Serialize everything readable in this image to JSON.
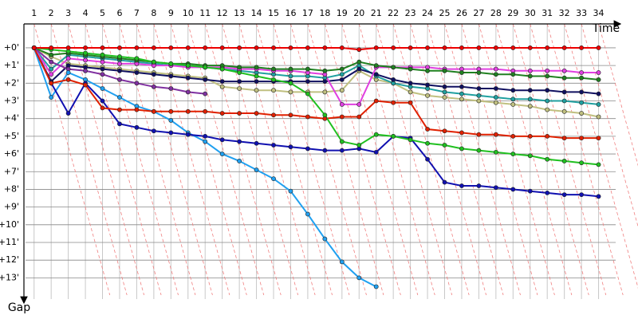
{
  "chart_data": {
    "type": "line",
    "x_label": "Time",
    "y_label": "Gap",
    "grid": true,
    "y_inverted": true,
    "x": [
      1,
      2,
      3,
      4,
      5,
      6,
      7,
      8,
      9,
      10,
      11,
      12,
      13,
      14,
      15,
      16,
      17,
      18,
      19,
      20,
      21,
      22,
      23,
      24,
      25,
      26,
      27,
      28,
      29,
      30,
      31,
      32,
      33,
      34
    ],
    "xlim": [
      0.5,
      35
    ],
    "xticks": [
      1,
      2,
      3,
      4,
      5,
      6,
      7,
      8,
      9,
      10,
      11,
      12,
      13,
      14,
      15,
      16,
      17,
      18,
      19,
      20,
      21,
      22,
      23,
      24,
      25,
      26,
      27,
      28,
      29,
      30,
      31,
      32,
      33,
      34
    ],
    "ylim": [
      -1.35,
      14.2
    ],
    "yticks": [
      {
        "value": 0,
        "label": "+0'"
      },
      {
        "value": 1,
        "label": "+1'"
      },
      {
        "value": 2,
        "label": "+2'"
      },
      {
        "value": 3,
        "label": "+3'"
      },
      {
        "value": 4,
        "label": "+4'"
      },
      {
        "value": 5,
        "label": "+5'"
      },
      {
        "value": 6,
        "label": "+6'"
      },
      {
        "value": 7,
        "label": "+7'"
      },
      {
        "value": 8,
        "label": "+8'"
      },
      {
        "value": 9,
        "label": "+9'"
      },
      {
        "value": 10,
        "label": "+10'"
      },
      {
        "value": 11,
        "label": "+11'"
      },
      {
        "value": 12,
        "label": "+12'"
      },
      {
        "value": 13,
        "label": "+13'"
      }
    ],
    "series": [
      {
        "color": "#c0c080",
        "values": [
          0,
          0.5,
          0.9,
          1.0,
          1.1,
          1.2,
          1.3,
          1.4,
          1.5,
          1.6,
          1.7,
          2.2,
          2.3,
          2.4,
          2.4,
          2.5,
          2.5,
          2.5,
          2.4,
          1.3,
          1.8,
          2.0,
          2.5,
          2.7,
          2.8,
          2.9,
          3.0,
          3.1,
          3.2,
          3.3,
          3.5,
          3.6,
          3.7,
          3.9
        ]
      },
      {
        "color": "#20a0a0",
        "values": [
          0,
          1.2,
          0.4,
          0.5,
          0.6,
          0.7,
          0.8,
          0.9,
          1.0,
          1.0,
          1.1,
          1.2,
          1.3,
          1.4,
          1.5,
          1.6,
          1.6,
          1.7,
          1.5,
          1.0,
          1.6,
          2.0,
          2.2,
          2.3,
          2.5,
          2.6,
          2.7,
          2.8,
          2.9,
          2.9,
          3.0,
          3.0,
          3.1,
          3.2
        ]
      },
      {
        "color": "#101060",
        "values": [
          0,
          1.9,
          1.0,
          1.1,
          1.2,
          1.3,
          1.4,
          1.5,
          1.6,
          1.7,
          1.8,
          1.9,
          1.9,
          1.9,
          1.9,
          1.9,
          1.9,
          1.9,
          1.8,
          1.2,
          1.5,
          1.8,
          2.0,
          2.1,
          2.2,
          2.2,
          2.3,
          2.3,
          2.4,
          2.4,
          2.4,
          2.5,
          2.5,
          2.6
        ]
      },
      {
        "color": "#e040e0",
        "values": [
          0,
          1.5,
          0.6,
          0.7,
          0.8,
          0.9,
          0.9,
          1.0,
          1.0,
          1.1,
          1.1,
          1.1,
          1.2,
          1.2,
          1.3,
          1.3,
          1.4,
          1.5,
          3.2,
          3.2,
          1.1,
          1.1,
          1.1,
          1.1,
          1.2,
          1.2,
          1.2,
          1.2,
          1.3,
          1.3,
          1.3,
          1.3,
          1.4,
          1.4
        ]
      },
      {
        "color": "#208020",
        "values": [
          0,
          0.4,
          0.3,
          0.4,
          0.5,
          0.6,
          0.7,
          0.8,
          0.9,
          0.9,
          1.0,
          1.0,
          1.1,
          1.1,
          1.2,
          1.2,
          1.2,
          1.3,
          1.2,
          0.8,
          1.0,
          1.1,
          1.2,
          1.3,
          1.3,
          1.4,
          1.4,
          1.5,
          1.5,
          1.6,
          1.6,
          1.7,
          1.7,
          1.8
        ]
      },
      {
        "color": "#8030a0",
        "values": [
          0,
          0.8,
          1.2,
          1.3,
          1.5,
          1.8,
          2.0,
          2.2,
          2.3,
          2.5,
          2.6,
          null,
          null,
          null,
          null,
          null,
          null,
          null,
          null,
          null,
          null,
          null,
          null,
          null,
          null,
          null,
          null,
          null,
          null,
          null,
          null,
          null,
          null,
          null
        ]
      },
      {
        "color": "#20a0f0",
        "values": [
          0,
          2.8,
          1.4,
          1.8,
          2.3,
          2.8,
          3.3,
          3.6,
          4.1,
          4.8,
          5.3,
          6.0,
          6.4,
          6.9,
          7.4,
          8.1,
          9.4,
          10.8,
          12.1,
          13.0,
          13.5,
          null,
          null,
          null,
          null,
          null,
          null,
          null,
          null,
          null,
          null,
          null,
          null,
          null
        ]
      },
      {
        "color": "#1010b0",
        "values": [
          0,
          2.0,
          3.7,
          2.0,
          3.0,
          4.3,
          4.5,
          4.7,
          4.8,
          4.9,
          5.0,
          5.2,
          5.3,
          5.4,
          5.5,
          5.6,
          5.7,
          5.8,
          5.8,
          5.7,
          5.9,
          5.0,
          5.1,
          6.3,
          7.6,
          7.8,
          7.8,
          7.9,
          8.0,
          8.1,
          8.2,
          8.3,
          8.3,
          8.4
        ]
      },
      {
        "color": "#e02000",
        "values": [
          0,
          2.0,
          1.8,
          2.1,
          3.4,
          3.5,
          3.5,
          3.6,
          3.6,
          3.6,
          3.6,
          3.7,
          3.7,
          3.7,
          3.8,
          3.8,
          3.9,
          4.0,
          3.9,
          3.9,
          3.0,
          3.1,
          3.1,
          4.6,
          4.7,
          4.8,
          4.9,
          4.9,
          5.0,
          5.0,
          5.0,
          5.1,
          5.1,
          5.1
        ]
      },
      {
        "color": "#20c020",
        "values": [
          0,
          0.1,
          0.2,
          0.3,
          0.4,
          0.5,
          0.6,
          0.8,
          0.9,
          1.0,
          1.1,
          1.2,
          1.4,
          1.6,
          1.8,
          2.0,
          2.6,
          3.8,
          5.3,
          5.5,
          4.9,
          5.0,
          5.2,
          5.4,
          5.5,
          5.7,
          5.8,
          5.9,
          6.0,
          6.1,
          6.3,
          6.4,
          6.5,
          6.6
        ]
      },
      {
        "color": "#ee0000",
        "values": [
          0,
          0,
          0,
          0,
          0,
          0,
          0,
          0,
          0,
          0,
          0,
          0,
          0,
          0,
          0,
          0,
          0,
          0,
          0,
          0.1,
          0,
          0,
          0,
          0,
          0,
          0,
          0,
          0,
          0,
          0,
          0,
          0,
          0,
          0
        ]
      }
    ]
  }
}
